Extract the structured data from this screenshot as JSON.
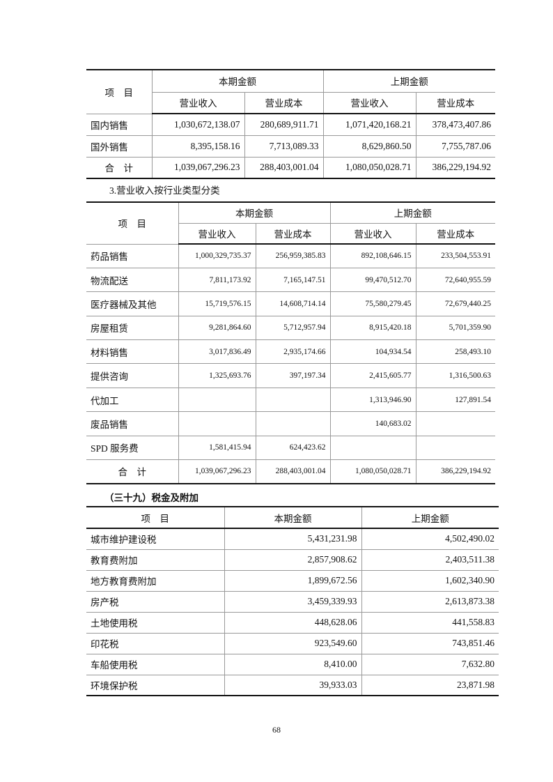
{
  "table1": {
    "item_header": "项　目",
    "current_header": "本期金额",
    "prior_header": "上期金额",
    "revenue_header": "营业收入",
    "cost_header": "营业成本",
    "rows": [
      {
        "item": "国内销售",
        "cur_rev": "1,030,672,138.07",
        "cur_cost": "280,689,911.71",
        "pri_rev": "1,071,420,168.21",
        "pri_cost": "378,473,407.86"
      },
      {
        "item": "国外销售",
        "cur_rev": "8,395,158.16",
        "cur_cost": "7,713,089.33",
        "pri_rev": "8,629,860.50",
        "pri_cost": "7,755,787.06"
      },
      {
        "item": "合　计",
        "cur_rev": "1,039,067,296.23",
        "cur_cost": "288,403,001.04",
        "pri_rev": "1,080,050,028.71",
        "pri_cost": "386,229,194.92"
      }
    ]
  },
  "section2_title": "3.营业收入按行业类型分类",
  "table2": {
    "item_header": "项　目",
    "current_header": "本期金额",
    "prior_header": "上期金额",
    "revenue_header": "营业收入",
    "cost_header": "营业成本",
    "rows": [
      {
        "item": "药品销售",
        "cur_rev": "1,000,329,735.37",
        "cur_cost": "256,959,385.83",
        "pri_rev": "892,108,646.15",
        "pri_cost": "233,504,553.91"
      },
      {
        "item": "物流配送",
        "cur_rev": "7,811,173.92",
        "cur_cost": "7,165,147.51",
        "pri_rev": "99,470,512.70",
        "pri_cost": "72,640,955.59"
      },
      {
        "item": "医疗器械及其他",
        "cur_rev": "15,719,576.15",
        "cur_cost": "14,608,714.14",
        "pri_rev": "75,580,279.45",
        "pri_cost": "72,679,440.25"
      },
      {
        "item": "房屋租赁",
        "cur_rev": "9,281,864.60",
        "cur_cost": "5,712,957.94",
        "pri_rev": "8,915,420.18",
        "pri_cost": "5,701,359.90"
      },
      {
        "item": "材料销售",
        "cur_rev": "3,017,836.49",
        "cur_cost": "2,935,174.66",
        "pri_rev": "104,934.54",
        "pri_cost": "258,493.10"
      },
      {
        "item": "提供咨询",
        "cur_rev": "1,325,693.76",
        "cur_cost": "397,197.34",
        "pri_rev": "2,415,605.77",
        "pri_cost": "1,316,500.63"
      },
      {
        "item": "代加工",
        "cur_rev": "",
        "cur_cost": "",
        "pri_rev": "1,313,946.90",
        "pri_cost": "127,891.54"
      },
      {
        "item": "废品销售",
        "cur_rev": "",
        "cur_cost": "",
        "pri_rev": "140,683.02",
        "pri_cost": ""
      },
      {
        "item": "SPD 服务费",
        "cur_rev": "1,581,415.94",
        "cur_cost": "624,423.62",
        "pri_rev": "",
        "pri_cost": ""
      },
      {
        "item": "合　计",
        "cur_rev": "1,039,067,296.23",
        "cur_cost": "288,403,001.04",
        "pri_rev": "1,080,050,028.71",
        "pri_cost": "386,229,194.92"
      }
    ]
  },
  "section3_title": "（三十九）税金及附加",
  "table3": {
    "item_header": "项　目",
    "current_header": "本期金额",
    "prior_header": "上期金额",
    "rows": [
      {
        "item": "城市维护建设税",
        "cur": "5,431,231.98",
        "pri": "4,502,490.02"
      },
      {
        "item": "教育费附加",
        "cur": "2,857,908.62",
        "pri": "2,403,511.38"
      },
      {
        "item": "地方教育费附加",
        "cur": "1,899,672.56",
        "pri": "1,602,340.90"
      },
      {
        "item": "房产税",
        "cur": "3,459,339.93",
        "pri": "2,613,873.38"
      },
      {
        "item": "土地使用税",
        "cur": "448,628.06",
        "pri": "441,558.83"
      },
      {
        "item": "印花税",
        "cur": "923,549.60",
        "pri": "743,851.46"
      },
      {
        "item": "车船使用税",
        "cur": "8,410.00",
        "pri": "7,632.80"
      },
      {
        "item": "环境保护税",
        "cur": "39,933.03",
        "pri": "23,871.98"
      }
    ]
  },
  "page_number": "68"
}
